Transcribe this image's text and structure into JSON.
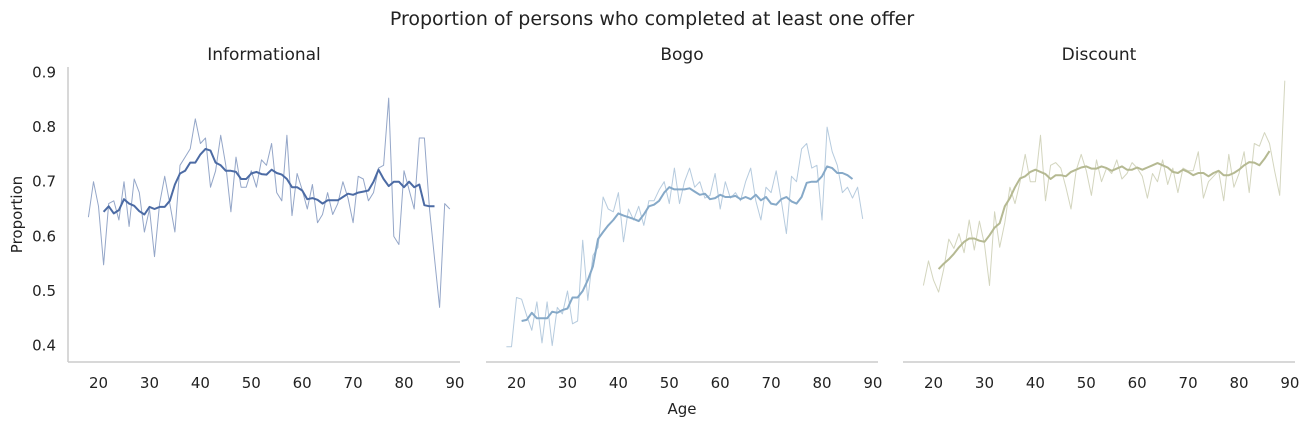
{
  "title": "Proportion of persons who completed at least one offer",
  "chart_data": [
    {
      "type": "line",
      "title": "Informational",
      "xlabel": "",
      "ylabel": "Proportion",
      "xlim": [
        14,
        91
      ],
      "ylim": [
        0.37,
        0.91
      ],
      "xticks": [
        20,
        30,
        40,
        50,
        60,
        70,
        80,
        90
      ],
      "yticks": [
        0.4,
        0.5,
        0.6,
        0.7,
        0.8,
        0.9
      ],
      "grid": false,
      "color": "#4c6ba4",
      "series": [
        {
          "style": "raw",
          "x": [
            18,
            19,
            20,
            21,
            22,
            23,
            24,
            25,
            26,
            27,
            28,
            29,
            30,
            31,
            32,
            33,
            34,
            35,
            36,
            37,
            38,
            39,
            40,
            41,
            42,
            43,
            44,
            45,
            46,
            47,
            48,
            49,
            50,
            51,
            52,
            53,
            54,
            55,
            56,
            57,
            58,
            59,
            60,
            61,
            62,
            63,
            64,
            65,
            66,
            67,
            68,
            69,
            70,
            71,
            72,
            73,
            74,
            75,
            76,
            77,
            78,
            79,
            80,
            81,
            82,
            83,
            84,
            85,
            86,
            87,
            88,
            89
          ],
          "y": [
            0.635,
            0.7,
            0.655,
            0.548,
            0.66,
            0.665,
            0.63,
            0.7,
            0.618,
            0.705,
            0.68,
            0.608,
            0.65,
            0.563,
            0.66,
            0.71,
            0.66,
            0.608,
            0.73,
            0.745,
            0.76,
            0.815,
            0.77,
            0.78,
            0.69,
            0.72,
            0.785,
            0.73,
            0.645,
            0.745,
            0.69,
            0.69,
            0.72,
            0.69,
            0.74,
            0.73,
            0.77,
            0.68,
            0.665,
            0.785,
            0.638,
            0.715,
            0.685,
            0.65,
            0.695,
            0.625,
            0.64,
            0.68,
            0.64,
            0.66,
            0.7,
            0.67,
            0.625,
            0.71,
            0.705,
            0.665,
            0.68,
            0.725,
            0.73,
            0.853,
            0.6,
            0.585,
            0.72,
            0.685,
            0.65,
            0.78,
            0.78,
            0.65,
            0.56,
            0.47,
            0.66,
            0.65
          ]
        },
        {
          "style": "smoothed",
          "x": [
            21,
            22,
            23,
            24,
            25,
            26,
            27,
            28,
            29,
            30,
            31,
            32,
            33,
            34,
            35,
            36,
            37,
            38,
            39,
            40,
            41,
            42,
            43,
            44,
            45,
            46,
            47,
            48,
            49,
            50,
            51,
            52,
            53,
            54,
            55,
            56,
            57,
            58,
            59,
            60,
            61,
            62,
            63,
            64,
            65,
            66,
            67,
            68,
            69,
            70,
            71,
            72,
            73,
            74,
            75,
            76,
            77,
            78,
            79,
            80,
            81,
            82,
            83,
            84,
            85,
            86
          ],
          "y": [
            0.645,
            0.655,
            0.642,
            0.648,
            0.668,
            0.66,
            0.656,
            0.646,
            0.64,
            0.654,
            0.65,
            0.654,
            0.654,
            0.665,
            0.695,
            0.715,
            0.72,
            0.735,
            0.735,
            0.75,
            0.76,
            0.757,
            0.735,
            0.73,
            0.72,
            0.72,
            0.718,
            0.705,
            0.705,
            0.715,
            0.718,
            0.714,
            0.713,
            0.722,
            0.716,
            0.713,
            0.705,
            0.69,
            0.69,
            0.684,
            0.668,
            0.67,
            0.667,
            0.66,
            0.666,
            0.666,
            0.666,
            0.672,
            0.678,
            0.676,
            0.68,
            0.682,
            0.684,
            0.7,
            0.722,
            0.705,
            0.692,
            0.7,
            0.7,
            0.69,
            0.7,
            0.69,
            0.695,
            0.657,
            0.655,
            0.655
          ]
        }
      ]
    },
    {
      "type": "line",
      "title": "Bogo",
      "xlabel": "Age",
      "ylabel": "",
      "xlim": [
        14,
        91
      ],
      "ylim": [
        0.37,
        0.91
      ],
      "xticks": [
        20,
        30,
        40,
        50,
        60,
        70,
        80,
        90
      ],
      "yticks": [],
      "grid": false,
      "color": "#86a9c8",
      "series": [
        {
          "style": "raw",
          "x": [
            18,
            19,
            20,
            21,
            22,
            23,
            24,
            25,
            26,
            27,
            28,
            29,
            30,
            31,
            32,
            33,
            34,
            35,
            36,
            37,
            38,
            39,
            40,
            41,
            42,
            43,
            44,
            45,
            46,
            47,
            48,
            49,
            50,
            51,
            52,
            53,
            54,
            55,
            56,
            57,
            58,
            59,
            60,
            61,
            62,
            63,
            64,
            65,
            66,
            67,
            68,
            69,
            70,
            71,
            72,
            73,
            74,
            75,
            76,
            77,
            78,
            79,
            80,
            81,
            82,
            83,
            84,
            85,
            86,
            87,
            88
          ],
          "y": [
            0.398,
            0.398,
            0.488,
            0.485,
            0.455,
            0.428,
            0.48,
            0.405,
            0.48,
            0.4,
            0.47,
            0.458,
            0.5,
            0.44,
            0.445,
            0.593,
            0.483,
            0.565,
            0.58,
            0.672,
            0.65,
            0.645,
            0.68,
            0.59,
            0.65,
            0.63,
            0.655,
            0.62,
            0.665,
            0.665,
            0.685,
            0.7,
            0.66,
            0.725,
            0.66,
            0.7,
            0.725,
            0.69,
            0.7,
            0.67,
            0.675,
            0.715,
            0.65,
            0.7,
            0.67,
            0.68,
            0.665,
            0.7,
            0.725,
            0.665,
            0.63,
            0.69,
            0.68,
            0.72,
            0.665,
            0.605,
            0.71,
            0.7,
            0.76,
            0.77,
            0.725,
            0.73,
            0.63,
            0.8,
            0.755,
            0.73,
            0.68,
            0.69,
            0.67,
            0.69,
            0.632
          ]
        },
        {
          "style": "smoothed",
          "x": [
            21,
            22,
            23,
            24,
            25,
            26,
            27,
            28,
            29,
            30,
            31,
            32,
            33,
            34,
            35,
            36,
            37,
            38,
            39,
            40,
            41,
            42,
            43,
            44,
            45,
            46,
            47,
            48,
            49,
            50,
            51,
            52,
            53,
            54,
            55,
            56,
            57,
            58,
            59,
            60,
            61,
            62,
            63,
            64,
            65,
            66,
            67,
            68,
            69,
            70,
            71,
            72,
            73,
            74,
            75,
            76,
            77,
            78,
            79,
            80,
            81,
            82,
            83,
            84,
            85,
            86
          ],
          "y": [
            0.445,
            0.447,
            0.46,
            0.45,
            0.45,
            0.45,
            0.462,
            0.46,
            0.465,
            0.468,
            0.488,
            0.488,
            0.5,
            0.52,
            0.545,
            0.595,
            0.608,
            0.62,
            0.63,
            0.642,
            0.638,
            0.635,
            0.632,
            0.628,
            0.64,
            0.655,
            0.658,
            0.665,
            0.68,
            0.69,
            0.686,
            0.686,
            0.686,
            0.688,
            0.682,
            0.676,
            0.678,
            0.668,
            0.67,
            0.676,
            0.672,
            0.672,
            0.674,
            0.668,
            0.672,
            0.668,
            0.676,
            0.666,
            0.672,
            0.66,
            0.658,
            0.668,
            0.672,
            0.664,
            0.66,
            0.672,
            0.698,
            0.7,
            0.7,
            0.71,
            0.728,
            0.725,
            0.716,
            0.716,
            0.712,
            0.705
          ]
        }
      ]
    },
    {
      "type": "line",
      "title": "Discount",
      "xlabel": "",
      "ylabel": "",
      "xlim": [
        14,
        91
      ],
      "ylim": [
        0.37,
        0.91
      ],
      "xticks": [
        20,
        30,
        40,
        50,
        60,
        70,
        80,
        90
      ],
      "yticks": [],
      "grid": false,
      "color": "#b5b992",
      "series": [
        {
          "style": "raw",
          "x": [
            18,
            19,
            20,
            21,
            22,
            23,
            24,
            25,
            26,
            27,
            28,
            29,
            30,
            31,
            32,
            33,
            34,
            35,
            36,
            37,
            38,
            39,
            40,
            41,
            42,
            43,
            44,
            45,
            46,
            47,
            48,
            49,
            50,
            51,
            52,
            53,
            54,
            55,
            56,
            57,
            58,
            59,
            60,
            61,
            62,
            63,
            64,
            65,
            66,
            67,
            68,
            69,
            70,
            71,
            72,
            73,
            74,
            75,
            76,
            77,
            78,
            79,
            80,
            81,
            82,
            83,
            84,
            85,
            86,
            87,
            88,
            89
          ],
          "y": [
            0.51,
            0.555,
            0.52,
            0.498,
            0.54,
            0.595,
            0.578,
            0.605,
            0.57,
            0.63,
            0.575,
            0.628,
            0.585,
            0.51,
            0.645,
            0.58,
            0.625,
            0.69,
            0.66,
            0.7,
            0.75,
            0.7,
            0.7,
            0.785,
            0.665,
            0.73,
            0.735,
            0.725,
            0.69,
            0.65,
            0.72,
            0.75,
            0.72,
            0.675,
            0.74,
            0.7,
            0.725,
            0.715,
            0.74,
            0.705,
            0.715,
            0.735,
            0.725,
            0.71,
            0.67,
            0.715,
            0.7,
            0.74,
            0.695,
            0.725,
            0.68,
            0.725,
            0.72,
            0.72,
            0.755,
            0.67,
            0.7,
            0.71,
            0.72,
            0.665,
            0.75,
            0.69,
            0.715,
            0.755,
            0.68,
            0.77,
            0.765,
            0.79,
            0.77,
            0.72,
            0.675,
            0.885
          ]
        },
        {
          "style": "smoothed",
          "x": [
            21,
            22,
            23,
            24,
            25,
            26,
            27,
            28,
            29,
            30,
            31,
            32,
            33,
            34,
            35,
            36,
            37,
            38,
            39,
            40,
            41,
            42,
            43,
            44,
            45,
            46,
            47,
            48,
            49,
            50,
            51,
            52,
            53,
            54,
            55,
            56,
            57,
            58,
            59,
            60,
            61,
            62,
            63,
            64,
            65,
            66,
            67,
            68,
            69,
            70,
            71,
            72,
            73,
            74,
            75,
            76,
            77,
            78,
            79,
            80,
            81,
            82,
            83,
            84,
            85,
            86
          ],
          "y": [
            0.54,
            0.55,
            0.558,
            0.568,
            0.58,
            0.59,
            0.596,
            0.596,
            0.592,
            0.59,
            0.602,
            0.616,
            0.624,
            0.655,
            0.67,
            0.69,
            0.706,
            0.71,
            0.718,
            0.722,
            0.718,
            0.714,
            0.705,
            0.712,
            0.712,
            0.71,
            0.718,
            0.722,
            0.726,
            0.728,
            0.724,
            0.724,
            0.728,
            0.725,
            0.72,
            0.724,
            0.728,
            0.722,
            0.722,
            0.726,
            0.722,
            0.726,
            0.73,
            0.734,
            0.73,
            0.726,
            0.718,
            0.716,
            0.722,
            0.718,
            0.712,
            0.716,
            0.716,
            0.71,
            0.716,
            0.72,
            0.712,
            0.712,
            0.716,
            0.722,
            0.73,
            0.736,
            0.735,
            0.73,
            0.742,
            0.756
          ]
        }
      ]
    }
  ]
}
